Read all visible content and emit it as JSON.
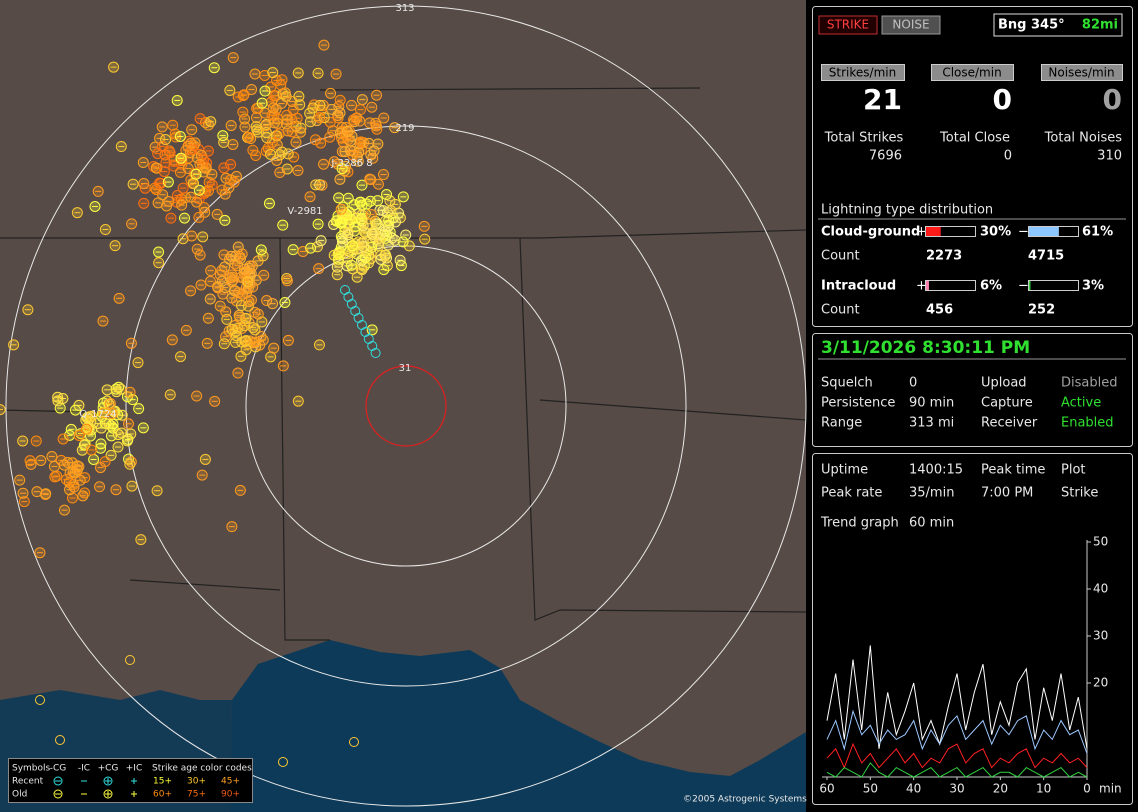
{
  "status": {
    "strike_button": "STRIKE",
    "noise_button": "NOISE",
    "bearing": "Bng 345°",
    "distance": "82mi"
  },
  "rates": [
    {
      "label": "Strikes/min",
      "value": 21,
      "total_label": "Total Strikes",
      "total": 7696
    },
    {
      "label": "Close/min",
      "value": 0,
      "total_label": "Total Close",
      "total": 0
    },
    {
      "label": "Noises/min",
      "value": 0,
      "total_label": "Total Noises",
      "total": 310
    }
  ],
  "distribution": {
    "title": "Lightning type distribution",
    "rows": [
      {
        "label": "Cloud-ground",
        "pos_sign": "+",
        "pos_pct": {
          "value": 30,
          "label": "30%"
        },
        "pos_color": "#ff1a1a",
        "neg_sign": "−",
        "neg_pct": {
          "value": 61,
          "label": "61%"
        },
        "neg_color": "#8cc8ff",
        "count_label": "Count",
        "pos_count": 2273,
        "neg_count": 4715
      },
      {
        "label": "Intracloud",
        "pos_sign": "+",
        "pos_pct": {
          "value": 6,
          "label": "6%"
        },
        "pos_color": "#ff80b0",
        "neg_sign": "−",
        "neg_pct": {
          "value": 3,
          "label": "3%"
        },
        "neg_color": "#30d040",
        "count_label": "Count",
        "pos_count": 456,
        "neg_count": 252
      }
    ]
  },
  "datetime": "3/11/2026 8:30:11 PM",
  "settings": [
    [
      {
        "text": "Squelch"
      },
      {
        "text": "0"
      },
      {
        "text": "Upload"
      },
      {
        "text": "Disabled",
        "color": "#a0a0a0"
      }
    ],
    [
      {
        "text": "Persistence"
      },
      {
        "text": "90 min"
      },
      {
        "text": "Capture"
      },
      {
        "text": "Active",
        "color": "#30e030"
      }
    ],
    [
      {
        "text": "Range"
      },
      {
        "text": "313 mi"
      },
      {
        "text": "Receiver"
      },
      {
        "text": "Enabled",
        "color": "#30e030"
      }
    ]
  ],
  "stats": [
    [
      "Uptime",
      "1400:15",
      "Peak time",
      "Plot"
    ],
    [
      "Peak rate",
      "35/min",
      "7:00 PM",
      "Strike"
    ],
    [
      "Trend graph",
      "60 min"
    ]
  ],
  "trend": {
    "xlim": [
      60,
      0
    ],
    "xticks": [
      60,
      50,
      40,
      30,
      20,
      10,
      0
    ],
    "x_unit": "min",
    "ylim": [
      0,
      50
    ],
    "yticks": [
      20,
      30,
      40,
      50
    ],
    "x": [
      60,
      58,
      56,
      54,
      52,
      50,
      48,
      46,
      44,
      42,
      40,
      38,
      36,
      34,
      32,
      30,
      28,
      26,
      24,
      22,
      20,
      18,
      16,
      14,
      12,
      10,
      8,
      6,
      4,
      2,
      0
    ],
    "series": [
      {
        "color": "#ffffff",
        "values": [
          12,
          22,
          8,
          25,
          10,
          28,
          6,
          18,
          9,
          14,
          20,
          8,
          12,
          7,
          15,
          22,
          10,
          18,
          24,
          9,
          16,
          11,
          20,
          23,
          8,
          19,
          12,
          22,
          10,
          17,
          6
        ]
      },
      {
        "color": "#9cc8ff",
        "values": [
          8,
          12,
          6,
          14,
          9,
          11,
          7,
          10,
          8,
          9,
          12,
          6,
          10,
          7,
          11,
          13,
          8,
          10,
          12,
          7,
          11,
          9,
          12,
          13,
          6,
          10,
          8,
          12,
          9,
          10,
          5
        ]
      },
      {
        "color": "#ff2020",
        "values": [
          4,
          6,
          2,
          7,
          3,
          5,
          2,
          4,
          6,
          3,
          5,
          2,
          4,
          3,
          6,
          7,
          3,
          5,
          6,
          2,
          4,
          3,
          5,
          6,
          2,
          4,
          3,
          5,
          3,
          4,
          2
        ]
      },
      {
        "color": "#30d040",
        "values": [
          1,
          0,
          2,
          1,
          0,
          3,
          1,
          0,
          2,
          1,
          0,
          1,
          2,
          0,
          1,
          2,
          0,
          1,
          2,
          0,
          1,
          1,
          0,
          2,
          1,
          0,
          1,
          2,
          0,
          1,
          0
        ]
      }
    ]
  },
  "map": {
    "range_labels": [
      "313",
      "219",
      "31"
    ],
    "strike_labels": [
      "J-3286 8",
      "V-2981",
      "Q-1724"
    ],
    "copyright": "©2005 Astrogenic Systems",
    "legend": {
      "symbols_label": "Symbols",
      "types": [
        "-CG",
        "-IC",
        "+CG",
        "+IC"
      ],
      "age_title": "Strike age color codes",
      "rows": [
        {
          "label": "Recent",
          "ages": [
            {
              "label": "15+",
              "color": "#ffff40"
            },
            {
              "label": "30+",
              "color": "#ffc830"
            },
            {
              "label": "45+",
              "color": "#ffa020"
            }
          ]
        },
        {
          "label": "Old",
          "ages": [
            {
              "label": "60+",
              "color": "#ff8a10"
            },
            {
              "label": "75+",
              "color": "#ff7010"
            },
            {
              "label": "90+",
              "color": "#f05a10"
            }
          ]
        }
      ]
    }
  }
}
